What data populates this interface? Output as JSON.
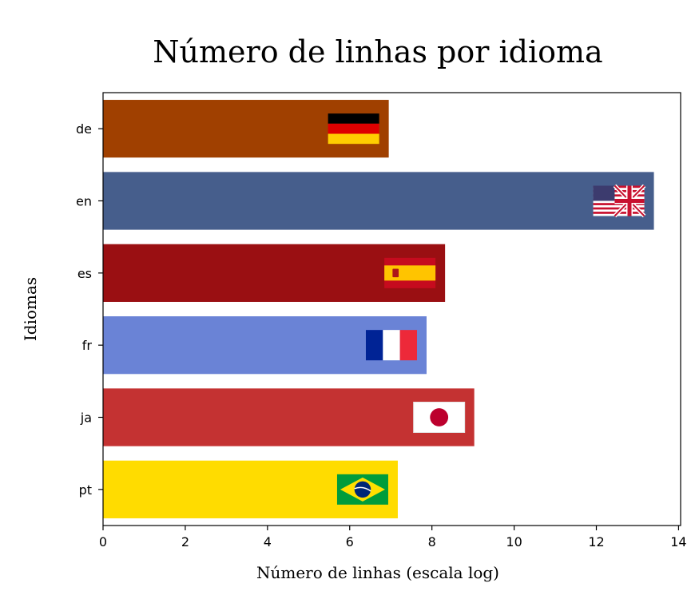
{
  "chart_data": {
    "type": "bar",
    "orientation": "horizontal",
    "title": "Número de linhas por idioma",
    "xlabel": "Número de linhas (escala log)",
    "ylabel": "Idiomas",
    "categories": [
      "de",
      "en",
      "es",
      "fr",
      "ja",
      "pt"
    ],
    "values": [
      6.95,
      13.4,
      8.32,
      7.87,
      9.03,
      7.17
    ],
    "colors": [
      "#a04000",
      "#465e8c",
      "#9a0f12",
      "#6a83d6",
      "#c43232",
      "#ffdc00"
    ],
    "flags": [
      "germany-flag",
      "uk-flag",
      "spain-flag",
      "france-flag",
      "japan-flag",
      "brazil-flag"
    ],
    "xlim": [
      0,
      14.05
    ],
    "xticks": [
      0,
      2,
      4,
      6,
      8,
      10,
      12,
      14
    ],
    "grid": false
  }
}
